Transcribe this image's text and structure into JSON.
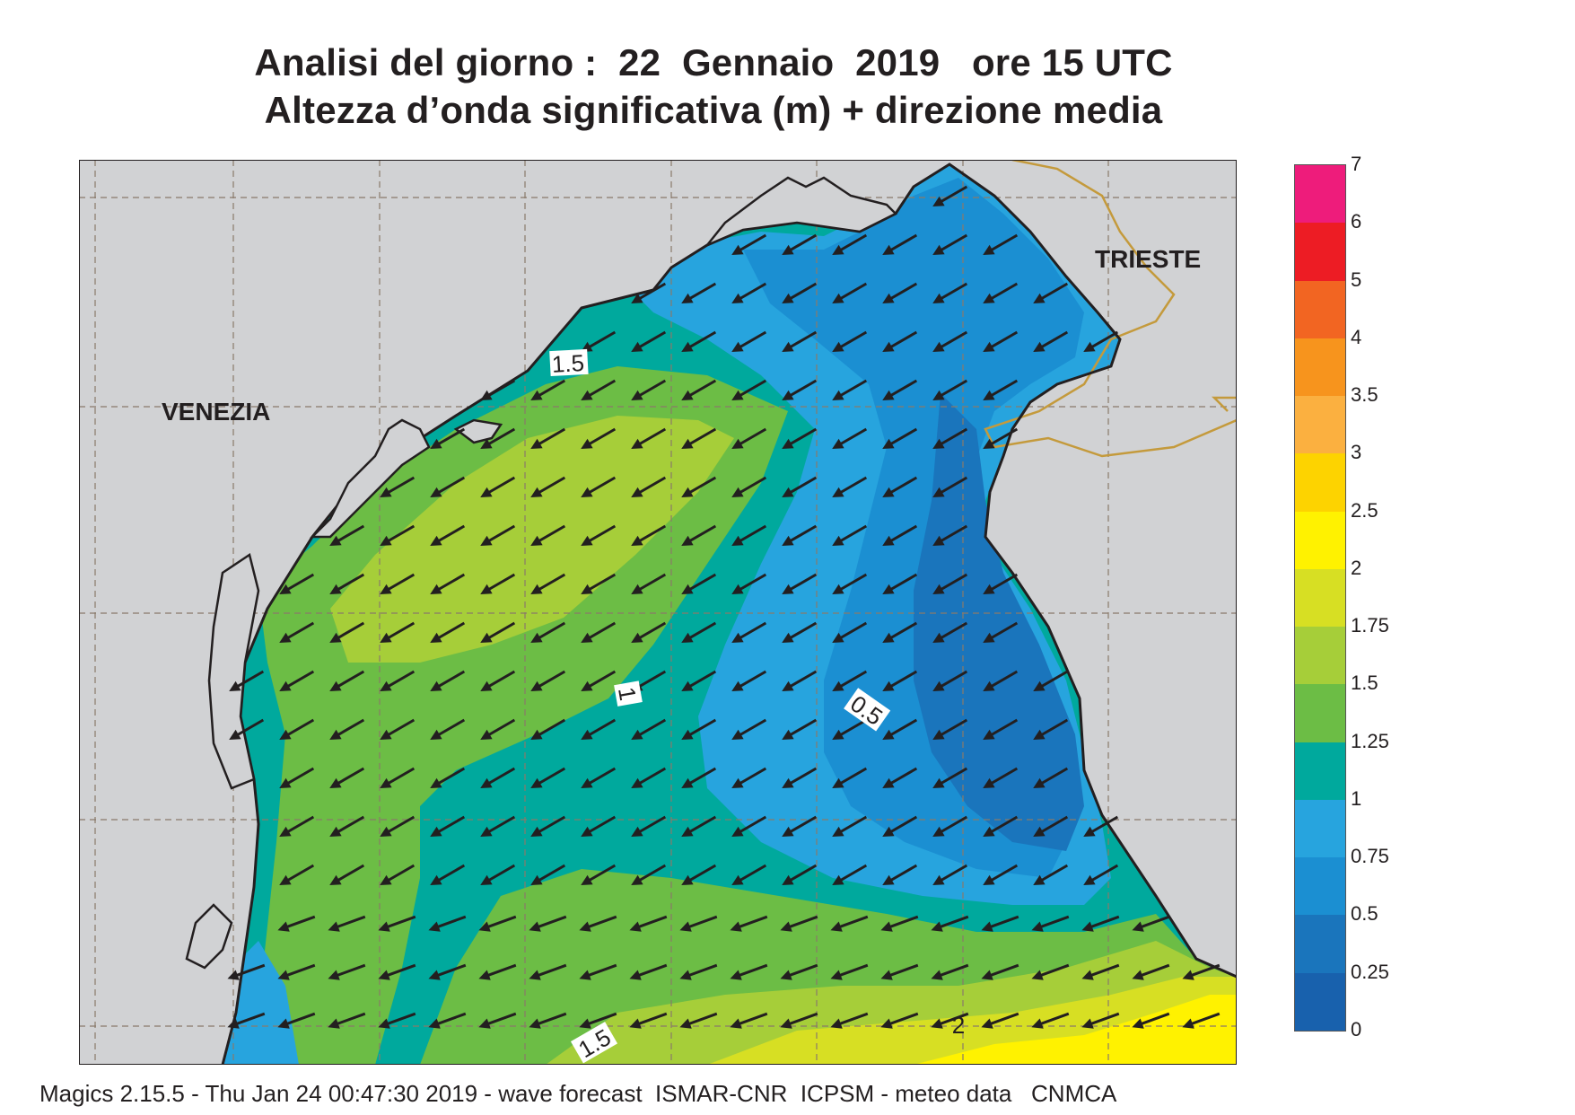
{
  "title": {
    "line1": "Analisi del giorno :  22  Gennaio  2019   ore 15 UTC",
    "line2": "Altezza d’onda significativa (m) + direzione media"
  },
  "map": {
    "places": {
      "venezia": "VENEZIA",
      "trieste": "TRIESTE"
    },
    "contour_labels": [
      "1.5",
      "1",
      "0.5",
      "1.5",
      "2"
    ],
    "mean_direction": "from north-east (arrows pointing south-west)"
  },
  "colorbar": {
    "labels": [
      "7",
      "6",
      "5",
      "4",
      "3.5",
      "3",
      "2.5",
      "2",
      "1.75",
      "1.5",
      "1.25",
      "1",
      "0.75",
      "0.5",
      "0.25",
      "0"
    ],
    "colors_top_to_bottom": [
      "#ee1c7b",
      "#ed1c24",
      "#f26522",
      "#f7941d",
      "#fbb040",
      "#fdd300",
      "#fff200",
      "#d7df23",
      "#a6ce39",
      "#6cbd45",
      "#00a99d",
      "#27a4de",
      "#1b8fd2",
      "#1a75bc",
      "#1861ad"
    ]
  },
  "colors": {
    "land": "#d1d2d4",
    "coast": "#231f20",
    "border": "#c49a3c",
    "grid": "#8a7a6a"
  },
  "footer": "Magics 2.15.5 - Thu Jan 24 00:47:30 2019 - wave forecast  ISMAR-CNR  ICPSM - meteo data   CNMCA"
}
